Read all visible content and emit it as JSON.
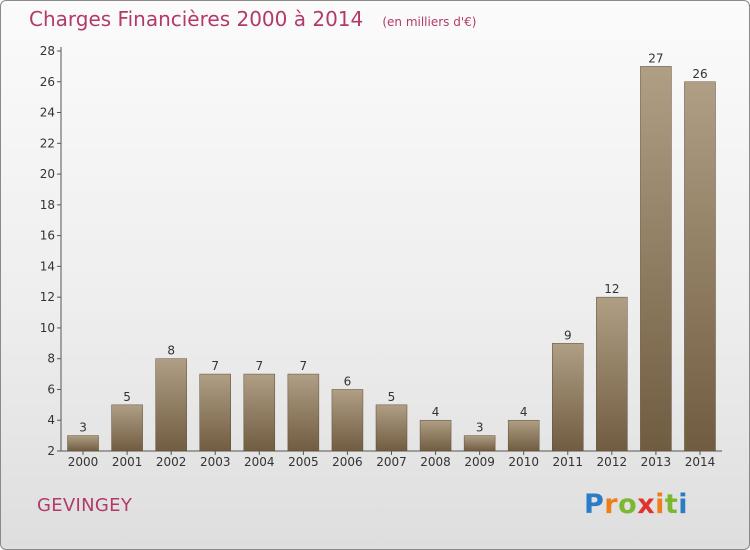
{
  "header": {
    "title": "Charges Financières 2000 à 2014",
    "subtitle": "(en milliers d'€)"
  },
  "footer": {
    "commune": "GEVINGEY",
    "logo": "Proxiti"
  },
  "colors": {
    "title": "#b23a6a",
    "bar_top": "#b09f85",
    "bar_bottom": "#705c41",
    "axis": "#555555"
  },
  "chart_data": {
    "type": "bar",
    "title": "Charges Financières 2000 à 2014",
    "subtitle": "(en milliers d'€)",
    "categories": [
      "2000",
      "2001",
      "2002",
      "2003",
      "2004",
      "2005",
      "2006",
      "2007",
      "2008",
      "2009",
      "2010",
      "2011",
      "2012",
      "2013",
      "2014"
    ],
    "values": [
      3,
      5,
      8,
      7,
      7,
      7,
      6,
      5,
      4,
      3,
      4,
      9,
      12,
      27,
      26
    ],
    "ylim": [
      2,
      28
    ],
    "yticks": [
      2,
      4,
      6,
      8,
      10,
      12,
      14,
      16,
      18,
      20,
      22,
      24,
      26,
      28
    ],
    "grid": false,
    "xlabel": "",
    "ylabel": ""
  }
}
